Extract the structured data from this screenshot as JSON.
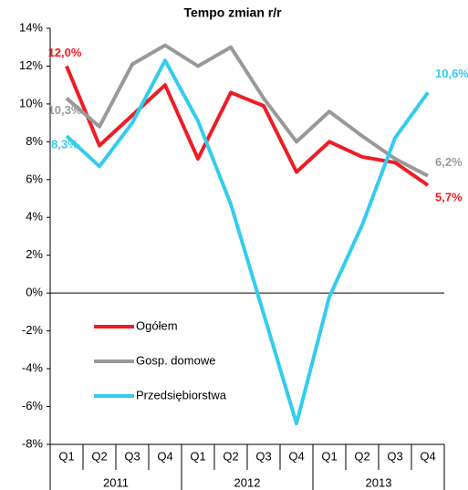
{
  "chart_data": {
    "type": "line",
    "title": "Tempo zmian r/r",
    "categories": [
      "Q1",
      "Q2",
      "Q3",
      "Q4",
      "Q1",
      "Q2",
      "Q3",
      "Q4",
      "Q1",
      "Q2",
      "Q3",
      "Q4"
    ],
    "years": [
      "2011",
      "2012",
      "2013"
    ],
    "series": [
      {
        "name": "Ogółem",
        "color": "#ee1c25",
        "values": [
          12.0,
          7.8,
          9.4,
          11.0,
          7.1,
          10.6,
          9.9,
          6.4,
          8.0,
          7.2,
          6.9,
          5.7
        ],
        "value_labels": [
          "12,0%",
          null,
          null,
          null,
          null,
          null,
          null,
          null,
          null,
          null,
          null,
          "5,7%"
        ]
      },
      {
        "name": "Gosp. domowe",
        "color": "#999999",
        "values": [
          10.3,
          8.8,
          12.1,
          13.1,
          12.0,
          13.0,
          10.3,
          8.0,
          9.6,
          8.3,
          7.1,
          6.2
        ],
        "value_labels": [
          "10,3%",
          null,
          null,
          null,
          null,
          null,
          null,
          null,
          null,
          null,
          null,
          "6,2%"
        ]
      },
      {
        "name": "Przedsiębiorstwa",
        "color": "#33ccee",
        "values": [
          8.3,
          6.7,
          9.0,
          12.3,
          9.1,
          4.7,
          -1.1,
          -6.9,
          -0.2,
          3.6,
          8.2,
          10.6
        ],
        "value_labels": [
          "8,3%",
          null,
          null,
          null,
          null,
          null,
          null,
          null,
          null,
          null,
          null,
          "10,6%"
        ]
      }
    ],
    "ylim": [
      -8,
      14
    ],
    "yticks": [
      {
        "value": -8,
        "label": "-8%"
      },
      {
        "value": -6,
        "label": "-6%"
      },
      {
        "value": -4,
        "label": "-4%"
      },
      {
        "value": -2,
        "label": "-2%"
      },
      {
        "value": 0,
        "label": "0%"
      },
      {
        "value": 2,
        "label": "2%"
      },
      {
        "value": 4,
        "label": "4%"
      },
      {
        "value": 6,
        "label": "6%"
      },
      {
        "value": 8,
        "label": "8%"
      },
      {
        "value": 10,
        "label": "10%"
      },
      {
        "value": 12,
        "label": "12%"
      },
      {
        "value": 14,
        "label": "14%"
      }
    ],
    "legend": "left",
    "grid": false
  }
}
